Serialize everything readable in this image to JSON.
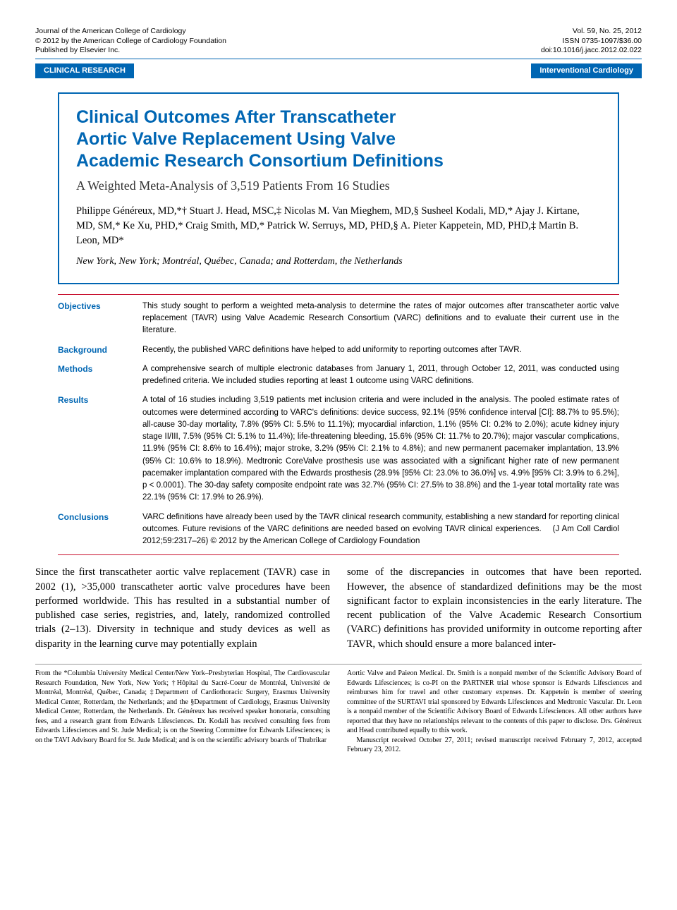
{
  "journal": {
    "name": "Journal of the American College of Cardiology",
    "copyright": "© 2012 by the American College of Cardiology Foundation",
    "publisher": "Published by Elsevier Inc.",
    "volume": "Vol. 59, No. 25, 2012",
    "issn": "ISSN 0735-1097/$36.00",
    "doi": "doi:10.1016/j.jacc.2012.02.022"
  },
  "badges": {
    "left": "CLINICAL RESEARCH",
    "right": "Interventional Cardiology"
  },
  "title": {
    "main1": "Clinical Outcomes After Transcatheter",
    "main2": "Aortic Valve Replacement Using Valve",
    "main3": "Academic Research Consortium Definitions",
    "subtitle": "A Weighted Meta-Analysis of 3,519 Patients From 16 Studies"
  },
  "authors": "Philippe Généreux, MD,*† Stuart J. Head, MSC,‡ Nicolas M. Van Mieghem, MD,§ Susheel Kodali, MD,* Ajay J. Kirtane, MD, SM,* Ke Xu, PHD,* Craig Smith, MD,* Patrick W. Serruys, MD, PHD,§ A. Pieter Kappetein, MD, PHD,‡ Martin B. Leon, MD*",
  "affiliation": "New York, New York; Montréal, Québec, Canada; and Rotterdam, the Netherlands",
  "abstract": {
    "objectives": {
      "label": "Objectives",
      "text": "This study sought to perform a weighted meta-analysis to determine the rates of major outcomes after transcatheter aortic valve replacement (TAVR) using Valve Academic Research Consortium (VARC) definitions and to evaluate their current use in the literature."
    },
    "background": {
      "label": "Background",
      "text": "Recently, the published VARC definitions have helped to add uniformity to reporting outcomes after TAVR."
    },
    "methods": {
      "label": "Methods",
      "text": "A comprehensive search of multiple electronic databases from January 1, 2011, through October 12, 2011, was conducted using predefined criteria. We included studies reporting at least 1 outcome using VARC definitions."
    },
    "results": {
      "label": "Results",
      "text": "A total of 16 studies including 3,519 patients met inclusion criteria and were included in the analysis. The pooled estimate rates of outcomes were determined according to VARC's definitions: device success, 92.1% (95% confidence interval [CI]: 88.7% to 95.5%); all-cause 30-day mortality, 7.8% (95% CI: 5.5% to 11.1%); myocardial infarction, 1.1% (95% CI: 0.2% to 2.0%); acute kidney injury stage II/III, 7.5% (95% CI: 5.1% to 11.4%); life-threatening bleeding, 15.6% (95% CI: 11.7% to 20.7%); major vascular complications, 11.9% (95% CI: 8.6% to 16.4%); major stroke, 3.2% (95% CI: 2.1% to 4.8%); and new permanent pacemaker implantation, 13.9% (95% CI: 10.6% to 18.9%). Medtronic CoreValve prosthesis use was associated with a significant higher rate of new permanent pacemaker implantation compared with the Edwards prosthesis (28.9% [95% CI: 23.0% to 36.0%] vs. 4.9% [95% CI: 3.9% to 6.2%], p < 0.0001). The 30-day safety composite endpoint rate was 32.7% (95% CI: 27.5% to 38.8%) and the 1-year total mortality rate was 22.1% (95% CI: 17.9% to 26.9%)."
    },
    "conclusions": {
      "label": "Conclusions",
      "text": "VARC definitions have already been used by the TAVR clinical research community, establishing a new standard for reporting clinical outcomes. Future revisions of the VARC definitions are needed based on evolving TAVR clinical experiences."
    },
    "citation": "(J Am Coll Cardiol 2012;59:2317–26) © 2012 by the American College of Cardiology Foundation"
  },
  "body": {
    "col1": "Since the first transcatheter aortic valve replacement (TAVR) case in 2002 (1), >35,000 transcatheter aortic valve procedures have been performed worldwide. This has resulted in a substantial number of published case series, registries, and, lately, randomized controlled trials (2–13). Diversity in technique and study devices as well as disparity in the learning curve may potentially explain",
    "col2": "some of the discrepancies in outcomes that have been reported. However, the absence of standardized definitions may be the most significant factor to explain inconsistencies in the early literature. The recent publication of the Valve Academic Research Consortium (VARC) definitions has provided uniformity in outcome reporting after TAVR, which should ensure a more balanced inter-"
  },
  "footnotes": {
    "col1": "From the *Columbia University Medical Center/New York–Presbyterian Hospital, The Cardiovascular Research Foundation, New York, New York; †Hôpital du Sacré-Coeur de Montréal, Université de Montréal, Montréal, Québec, Canada; ‡Department of Cardiothoracic Surgery, Erasmus University Medical Center, Rotterdam, the Netherlands; and the §Department of Cardiology, Erasmus University Medical Center, Rotterdam, the Netherlands. Dr. Généreux has received speaker honoraria, consulting fees, and a research grant from Edwards Lifesciences. Dr. Kodali has received consulting fees from Edwards Lifesciences and St. Jude Medical; is on the Steering Committee for Edwards Lifesciences; is on the TAVI Advisory Board for St. Jude Medical; and is on the scientific advisory boards of Thubrikar",
    "col2": "Aortic Valve and Paieon Medical. Dr. Smith is a nonpaid member of the Scientific Advisory Board of Edwards Lifesciences; is co-PI on the PARTNER trial whose sponsor is Edwards Lifesciences and reimburses him for travel and other customary expenses. Dr. Kappetein is member of steering committee of the SURTAVI trial sponsored by Edwards Lifesciences and Medtronic Vascular. Dr. Leon is a nonpaid member of the Scientific Advisory Board of Edwards Lifesciences. All other authors have reported that they have no relationships relevant to the contents of this paper to disclose. Drs. Généreux and Head contributed equally to this work.\n   Manuscript received October 27, 2011; revised manuscript received February 7, 2012, accepted February 23, 2012."
  },
  "colors": {
    "blue": "#0066b3",
    "red": "#c8102e",
    "text": "#000000",
    "bg": "#ffffff"
  }
}
